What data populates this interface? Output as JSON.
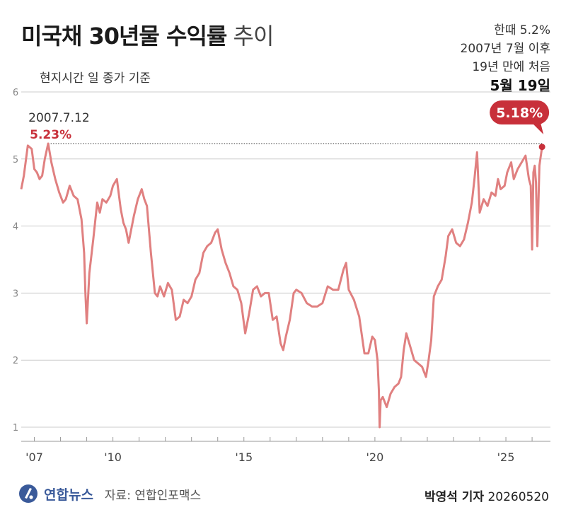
{
  "title": {
    "bold": "미국채 30년물 수익률",
    "light": "추이"
  },
  "subtitle": "현지시간 일 종가 기준",
  "note": {
    "line1": "한때 5.2%",
    "line2": "2007년 7월 이후",
    "line3": "19년 만에 처음",
    "date": "5월 19일"
  },
  "footer": {
    "logo": "연합뉴스",
    "source": "자료: 연합인포맥스",
    "reporter": "박영석 기자",
    "date": "20260520"
  },
  "colors": {
    "line": "#e08080",
    "highlight": "#c8303a",
    "grid": "#cccccc"
  },
  "chart_data": {
    "type": "line",
    "title": "미국채 30년물 수익률 추이",
    "ylim": [
      1,
      6
    ],
    "yticks": [
      1,
      2,
      3,
      4,
      5,
      6
    ],
    "xlim": [
      2006.5,
      2026.7
    ],
    "xticks": [
      {
        "value": 2007,
        "label": "'07"
      },
      {
        "value": 2010,
        "label": "'10"
      },
      {
        "value": 2015,
        "label": "'15"
      },
      {
        "value": 2020,
        "label": "'20"
      },
      {
        "value": 2025,
        "label": "'25"
      }
    ],
    "grid": true,
    "annotations": [
      {
        "x": 2007.53,
        "y": 5.23,
        "date": "2007.7.12",
        "label": "5.23%"
      },
      {
        "x": 2026.38,
        "y": 5.18,
        "label": "5.18%"
      }
    ],
    "series": [
      {
        "x": [
          2006.5,
          2006.6,
          2006.75,
          2006.9,
          2007.0,
          2007.1,
          2007.2,
          2007.3,
          2007.4,
          2007.53,
          2007.65,
          2007.8,
          2007.95,
          2008.1,
          2008.2,
          2008.35,
          2008.5,
          2008.65,
          2008.8,
          2008.9,
          2008.95,
          2009.0,
          2009.1,
          2009.25,
          2009.4,
          2009.5,
          2009.6,
          2009.75,
          2009.9,
          2010.0,
          2010.15,
          2010.3,
          2010.4,
          2010.5,
          2010.6,
          2010.7,
          2010.8,
          2010.95,
          2011.1,
          2011.2,
          2011.3,
          2011.45,
          2011.6,
          2011.7,
          2011.8,
          2011.95,
          2012.1,
          2012.25,
          2012.4,
          2012.55,
          2012.7,
          2012.85,
          2013.0,
          2013.15,
          2013.3,
          2013.45,
          2013.6,
          2013.75,
          2013.9,
          2014.0,
          2014.15,
          2014.3,
          2014.45,
          2014.6,
          2014.75,
          2014.9,
          2015.05,
          2015.2,
          2015.35,
          2015.5,
          2015.65,
          2015.8,
          2015.95,
          2016.1,
          2016.25,
          2016.4,
          2016.5,
          2016.6,
          2016.75,
          2016.9,
          2017.0,
          2017.2,
          2017.4,
          2017.6,
          2017.8,
          2018.0,
          2018.2,
          2018.4,
          2018.6,
          2018.8,
          2018.9,
          2019.0,
          2019.2,
          2019.4,
          2019.6,
          2019.75,
          2019.9,
          2020.0,
          2020.1,
          2020.15,
          2020.18,
          2020.22,
          2020.3,
          2020.45,
          2020.6,
          2020.75,
          2020.9,
          2021.0,
          2021.1,
          2021.2,
          2021.35,
          2021.5,
          2021.65,
          2021.8,
          2021.95,
          2022.05,
          2022.15,
          2022.25,
          2022.4,
          2022.55,
          2022.7,
          2022.8,
          2022.95,
          2023.1,
          2023.25,
          2023.4,
          2023.55,
          2023.7,
          2023.8,
          2023.9,
          2024.0,
          2024.15,
          2024.3,
          2024.45,
          2024.6,
          2024.7,
          2024.8,
          2024.95,
          2025.05,
          2025.2,
          2025.3,
          2025.45,
          2025.6,
          2025.75,
          2025.88,
          2025.95,
          2026.0,
          2026.05,
          2026.1,
          2026.15,
          2026.2,
          2026.28,
          2026.38
        ],
        "y": [
          4.55,
          4.75,
          5.2,
          5.15,
          4.85,
          4.8,
          4.7,
          4.75,
          5.0,
          5.23,
          4.95,
          4.7,
          4.5,
          4.35,
          4.4,
          4.6,
          4.45,
          4.4,
          4.1,
          3.6,
          3.0,
          2.55,
          3.3,
          3.8,
          4.35,
          4.2,
          4.4,
          4.35,
          4.45,
          4.6,
          4.7,
          4.25,
          4.05,
          3.95,
          3.75,
          3.95,
          4.15,
          4.4,
          4.55,
          4.4,
          4.3,
          3.6,
          3.0,
          2.95,
          3.1,
          2.95,
          3.15,
          3.05,
          2.6,
          2.65,
          2.9,
          2.85,
          2.95,
          3.2,
          3.3,
          3.6,
          3.7,
          3.75,
          3.9,
          3.95,
          3.65,
          3.45,
          3.3,
          3.1,
          3.05,
          2.85,
          2.4,
          2.7,
          3.05,
          3.1,
          2.95,
          3.0,
          3.0,
          2.6,
          2.65,
          2.25,
          2.15,
          2.35,
          2.6,
          3.0,
          3.05,
          3.0,
          2.85,
          2.8,
          2.8,
          2.85,
          3.1,
          3.05,
          3.05,
          3.35,
          3.45,
          3.05,
          2.9,
          2.65,
          2.1,
          2.1,
          2.35,
          2.3,
          2.0,
          1.55,
          1.0,
          1.4,
          1.45,
          1.3,
          1.5,
          1.6,
          1.65,
          1.75,
          2.15,
          2.4,
          2.2,
          2.0,
          1.95,
          1.9,
          1.75,
          2.0,
          2.3,
          2.95,
          3.1,
          3.2,
          3.55,
          3.85,
          3.95,
          3.75,
          3.7,
          3.8,
          4.05,
          4.35,
          4.7,
          5.1,
          4.2,
          4.4,
          4.3,
          4.5,
          4.45,
          4.7,
          4.55,
          4.6,
          4.8,
          4.95,
          4.7,
          4.85,
          4.95,
          5.05,
          4.7,
          4.6,
          3.65,
          4.8,
          4.9,
          4.65,
          3.7,
          4.9,
          5.18
        ]
      }
    ]
  }
}
